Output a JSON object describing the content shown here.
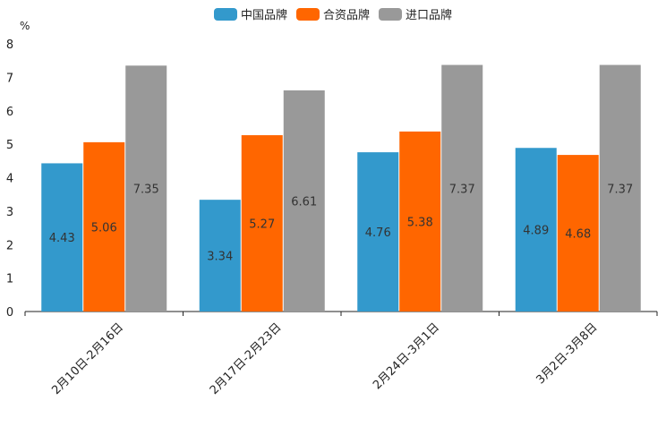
{
  "chart_data": {
    "type": "bar",
    "title": "",
    "xlabel": "",
    "ylabel": "%",
    "ylim": [
      0,
      8
    ],
    "yticks": [
      0,
      1,
      2,
      3,
      4,
      5,
      6,
      7,
      8
    ],
    "categories": [
      "2月10日-2月16日",
      "2月17日-2月23日",
      "2月24日-3月1日",
      "3月2日-3月8日"
    ],
    "series": [
      {
        "name": "中国品牌",
        "color": "#3399cc",
        "values": [
          4.43,
          3.34,
          4.76,
          4.89
        ]
      },
      {
        "name": "合资品牌",
        "color": "#ff6600",
        "values": [
          5.06,
          5.27,
          5.38,
          4.68
        ]
      },
      {
        "name": "进口品牌",
        "color": "#999999",
        "values": [
          7.35,
          6.61,
          7.37,
          7.37
        ]
      }
    ],
    "data_labels": [
      [
        "4.43",
        "3.34",
        "4.76",
        "4.89"
      ],
      [
        "5.06",
        "5.27",
        "5.38",
        "4.68"
      ],
      [
        "7.35",
        "6.61",
        "7.37",
        "7.37"
      ]
    ],
    "legend_position": "top-center",
    "grid": false
  }
}
